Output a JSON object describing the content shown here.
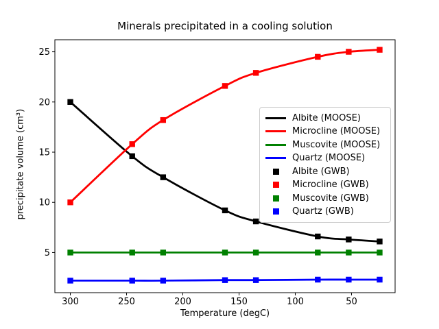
{
  "chart_data": {
    "type": "line",
    "title": "Minerals precipitated in a cooling solution",
    "xlabel": "Temperature (degC)",
    "ylabel": "precipitate volume (cm³)",
    "x_axis_inverted": true,
    "grid": false,
    "xlim": [
      313.75,
      11.25
    ],
    "ylim": [
      1.0,
      26.2
    ],
    "xticks": [
      300,
      250,
      200,
      150,
      100,
      50
    ],
    "yticks": [
      5,
      10,
      15,
      20,
      25
    ],
    "legend_position": "center right inside axes",
    "x": [
      300,
      245,
      217.5,
      162.5,
      135,
      80,
      52.5,
      25
    ],
    "series": [
      {
        "name": "Albite (MOOSE)",
        "style": "line",
        "color": "#000000",
        "values": [
          20.0,
          14.6,
          12.5,
          9.2,
          8.1,
          6.6,
          6.3,
          6.1
        ]
      },
      {
        "name": "Microcline (MOOSE)",
        "style": "line",
        "color": "#ff0000",
        "values": [
          10.0,
          15.8,
          18.2,
          21.6,
          22.9,
          24.5,
          25.0,
          25.2
        ]
      },
      {
        "name": "Muscovite (MOOSE)",
        "style": "line",
        "color": "#008000",
        "values": [
          5.0,
          5.0,
          5.0,
          5.0,
          5.0,
          5.0,
          5.0,
          5.0
        ]
      },
      {
        "name": "Quartz (MOOSE)",
        "style": "line",
        "color": "#0000ff",
        "values": [
          2.2,
          2.2,
          2.2,
          2.25,
          2.25,
          2.3,
          2.3,
          2.3
        ]
      },
      {
        "name": "Albite (GWB)",
        "style": "marker",
        "color": "#000000",
        "values": [
          20.0,
          14.6,
          12.5,
          9.2,
          8.1,
          6.6,
          6.3,
          6.1
        ]
      },
      {
        "name": "Microcline (GWB)",
        "style": "marker",
        "color": "#ff0000",
        "values": [
          10.0,
          15.8,
          18.2,
          21.6,
          22.9,
          24.5,
          25.0,
          25.2
        ]
      },
      {
        "name": "Muscovite (GWB)",
        "style": "marker",
        "color": "#008000",
        "values": [
          5.0,
          5.0,
          5.0,
          5.0,
          5.0,
          5.0,
          5.0,
          5.0
        ]
      },
      {
        "name": "Quartz (GWB)",
        "style": "marker",
        "color": "#0000ff",
        "values": [
          2.2,
          2.2,
          2.2,
          2.25,
          2.25,
          2.3,
          2.3,
          2.3
        ]
      }
    ]
  }
}
